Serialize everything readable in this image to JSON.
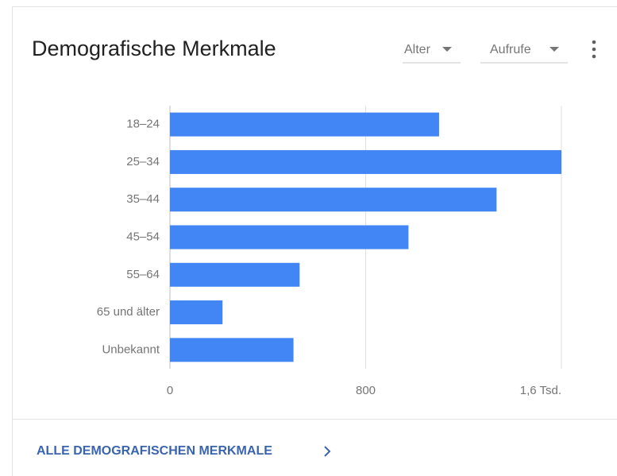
{
  "chart_data": {
    "type": "bar",
    "orientation": "horizontal",
    "title": "Demografische Merkmale",
    "categories": [
      "18–24",
      "25–34",
      "35–44",
      "45–54",
      "55–64",
      "65 und älter",
      "Unbekannt"
    ],
    "values": [
      1100,
      1600,
      1335,
      975,
      530,
      215,
      505
    ],
    "color": "#4285f4",
    "xlim": [
      0,
      1600
    ],
    "xticks": [
      0,
      800,
      {
        "value": 1600,
        "label": "1,6 Tsd."
      }
    ],
    "grid": true
  },
  "controls": {
    "dimension": "Alter",
    "metric": "Aufrufe"
  },
  "footer": {
    "link": "ALLE DEMOGRAFISCHEN MERKMALE"
  }
}
